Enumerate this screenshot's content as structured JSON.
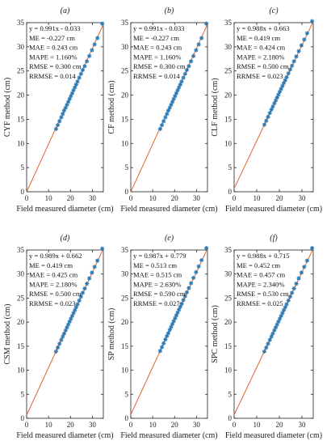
{
  "chart_data": [
    {
      "type": "scatter",
      "panel": "(a)",
      "xlabel": "Field measured diameter (cm)",
      "ylabel": "CYF method (cm)",
      "xlim": [
        0,
        35
      ],
      "ylim": [
        0,
        35
      ],
      "xticks": [
        0,
        10,
        20,
        30
      ],
      "yticks": [
        0,
        5,
        10,
        15,
        20,
        25,
        30,
        35
      ],
      "fit": {
        "slope": 0.991,
        "intercept": -0.033
      },
      "annotations": [
        "y = 0.991x - 0.033",
        "ME = -0.227 cm",
        "MAE = 0.243 cm",
        "MAPE = 1.160%",
        "RMSE = 0.300 cm",
        "RRMSE = 0.014"
      ],
      "x": [
        13.4,
        14.2,
        15.0,
        15.8,
        16.5,
        17.1,
        17.8,
        18.4,
        19.0,
        19.6,
        20.2,
        20.8,
        21.4,
        22.0,
        22.6,
        23.2,
        24.0,
        24.8,
        25.6,
        26.5,
        27.5,
        28.6,
        29.8,
        31.0,
        32.3,
        34.5
      ],
      "y": [
        13.0,
        13.8,
        14.6,
        15.4,
        16.1,
        16.8,
        17.4,
        18.0,
        18.6,
        19.2,
        19.8,
        20.4,
        21.0,
        21.6,
        22.2,
        22.8,
        23.6,
        24.4,
        25.2,
        26.0,
        27.0,
        28.1,
        29.3,
        30.5,
        31.8,
        34.8
      ]
    },
    {
      "type": "scatter",
      "panel": "(b)",
      "xlabel": "Field measured diameter (cm)",
      "ylabel": "CF method (cm)",
      "xlim": [
        0,
        35
      ],
      "ylim": [
        0,
        35
      ],
      "xticks": [
        0,
        10,
        20,
        30
      ],
      "yticks": [
        0,
        5,
        10,
        15,
        20,
        25,
        30,
        35
      ],
      "fit": {
        "slope": 0.991,
        "intercept": -0.033
      },
      "annotations": [
        "y = 0.991x - 0.033",
        "ME = -0.227 cm",
        "MAE = 0.243 cm",
        "MAPE = 1.160%",
        "RMSE = 0.300 cm",
        "RRMSE = 0.014"
      ],
      "x": [
        13.4,
        14.2,
        15.0,
        15.8,
        16.5,
        17.1,
        17.8,
        18.4,
        19.0,
        19.6,
        20.2,
        20.8,
        21.4,
        22.0,
        22.6,
        23.2,
        24.0,
        24.8,
        25.6,
        26.5,
        27.5,
        28.6,
        29.8,
        31.0,
        32.3,
        34.5
      ],
      "y": [
        13.0,
        13.8,
        14.6,
        15.4,
        16.1,
        16.8,
        17.4,
        18.0,
        18.6,
        19.2,
        19.8,
        20.4,
        21.0,
        21.6,
        22.2,
        22.8,
        23.6,
        24.4,
        25.2,
        26.0,
        27.0,
        28.1,
        29.3,
        30.5,
        31.8,
        34.8
      ]
    },
    {
      "type": "scatter",
      "panel": "(c)",
      "xlabel": "Field measured diameter (cm)",
      "ylabel": "CLF method (cm)",
      "xlim": [
        0,
        35
      ],
      "ylim": [
        0,
        35
      ],
      "xticks": [
        0,
        10,
        20,
        30
      ],
      "yticks": [
        0,
        5,
        10,
        15,
        20,
        25,
        30,
        35
      ],
      "fit": {
        "slope": 0.988,
        "intercept": 0.663
      },
      "annotations": [
        "y = 0.988x + 0.663",
        "ME = 0.419 cm",
        "MAE = 0.424 cm",
        "MAPE = 2.180%",
        "RMSE = 0.500 cm",
        "RRMSE = 0.023"
      ],
      "x": [
        13.4,
        14.2,
        15.0,
        15.8,
        16.5,
        17.1,
        17.8,
        18.4,
        19.0,
        19.6,
        20.2,
        20.8,
        21.4,
        22.0,
        22.6,
        23.2,
        24.0,
        24.8,
        25.6,
        26.5,
        27.5,
        28.6,
        29.8,
        31.0,
        32.3,
        34.5
      ],
      "y": [
        13.9,
        14.7,
        15.5,
        16.3,
        17.0,
        17.6,
        18.3,
        18.9,
        19.5,
        20.1,
        20.7,
        21.3,
        21.9,
        22.5,
        23.1,
        23.7,
        24.5,
        25.3,
        26.1,
        27.0,
        28.0,
        29.1,
        30.3,
        31.5,
        32.8,
        35.3
      ]
    },
    {
      "type": "scatter",
      "panel": "(d)",
      "xlabel": "Field measured diameter (cm)",
      "ylabel": "CSM method (cm)",
      "xlim": [
        0,
        35
      ],
      "ylim": [
        0,
        35
      ],
      "xticks": [
        0,
        10,
        20,
        30
      ],
      "yticks": [
        0,
        5,
        10,
        15,
        20,
        25,
        30,
        35
      ],
      "fit": {
        "slope": 0.989,
        "intercept": 0.662
      },
      "annotations": [
        "y = 0.989x + 0.662",
        "ME = 0.419 cm",
        "MAE = 0.425 cm",
        "MAPE = 2.180%",
        "RMSE = 0.500 cm",
        "RRMSE = 0.023"
      ],
      "x": [
        13.4,
        14.2,
        15.0,
        15.8,
        16.5,
        17.1,
        17.8,
        18.4,
        19.0,
        19.6,
        20.2,
        20.8,
        21.4,
        22.0,
        22.6,
        23.2,
        24.0,
        24.8,
        25.6,
        26.5,
        27.5,
        28.6,
        29.8,
        31.0,
        32.3,
        34.5
      ],
      "y": [
        13.9,
        14.7,
        15.5,
        16.3,
        17.0,
        17.6,
        18.3,
        18.9,
        19.5,
        20.1,
        20.7,
        21.3,
        21.9,
        22.5,
        23.1,
        23.7,
        24.5,
        25.3,
        26.1,
        27.0,
        28.0,
        29.1,
        30.3,
        31.5,
        32.8,
        35.3
      ]
    },
    {
      "type": "scatter",
      "panel": "(e)",
      "xlabel": "Field measured diameter (cm)",
      "ylabel": "SP method (cm)",
      "xlim": [
        0,
        35
      ],
      "ylim": [
        0,
        35
      ],
      "xticks": [
        0,
        10,
        20,
        30
      ],
      "yticks": [
        0,
        5,
        10,
        15,
        20,
        25,
        30,
        35
      ],
      "fit": {
        "slope": 0.987,
        "intercept": 0.779
      },
      "annotations": [
        "y = 0.987x + 0.779",
        "ME = 0.513 cm",
        "MAE = 0.515 cm",
        "MAPE = 2.630%",
        "RMSE = 0.590 cm",
        "RRMSE = 0.027"
      ],
      "x": [
        13.4,
        14.2,
        15.0,
        15.8,
        16.5,
        17.1,
        17.8,
        18.4,
        19.0,
        19.6,
        20.2,
        20.8,
        21.4,
        22.0,
        22.6,
        23.2,
        24.0,
        24.8,
        25.6,
        26.5,
        27.5,
        28.6,
        29.8,
        31.0,
        32.3,
        34.5
      ],
      "y": [
        14.0,
        14.8,
        15.6,
        16.4,
        17.1,
        17.7,
        18.4,
        19.0,
        19.6,
        20.2,
        20.8,
        21.4,
        22.0,
        22.6,
        23.2,
        23.8,
        24.6,
        25.4,
        26.2,
        27.1,
        28.1,
        29.2,
        30.4,
        31.6,
        32.9,
        35.4
      ]
    },
    {
      "type": "scatter",
      "panel": "(f)",
      "xlabel": "Field measured diameter (cm)",
      "ylabel": "SPC method (cm)",
      "xlim": [
        0,
        35
      ],
      "ylim": [
        0,
        35
      ],
      "xticks": [
        0,
        10,
        20,
        30
      ],
      "yticks": [
        0,
        5,
        10,
        15,
        20,
        25,
        30,
        35
      ],
      "fit": {
        "slope": 0.988,
        "intercept": 0.715
      },
      "annotations": [
        "y = 0.988x + 0.715",
        "ME = 0.452 cm",
        "MAE = 0.457 cm",
        "MAPE = 2.340%",
        "RMSE = 0.530 cm",
        "RRMSE = 0.025"
      ],
      "x": [
        13.4,
        14.2,
        15.0,
        15.8,
        16.5,
        17.1,
        17.8,
        18.4,
        19.0,
        19.6,
        20.2,
        20.8,
        21.4,
        22.0,
        22.6,
        23.2,
        24.0,
        24.8,
        25.6,
        26.5,
        27.5,
        28.6,
        29.8,
        31.0,
        32.3,
        34.5
      ],
      "y": [
        13.9,
        14.7,
        15.5,
        16.3,
        17.0,
        17.6,
        18.3,
        18.9,
        19.5,
        20.1,
        20.7,
        21.3,
        21.9,
        22.5,
        23.1,
        23.7,
        24.5,
        25.3,
        26.1,
        27.0,
        28.0,
        29.1,
        30.3,
        31.5,
        32.8,
        35.4
      ]
    }
  ],
  "colors": {
    "marker": "#2c7bb6",
    "fit_line": "#e0642a",
    "axis": "#222222"
  }
}
